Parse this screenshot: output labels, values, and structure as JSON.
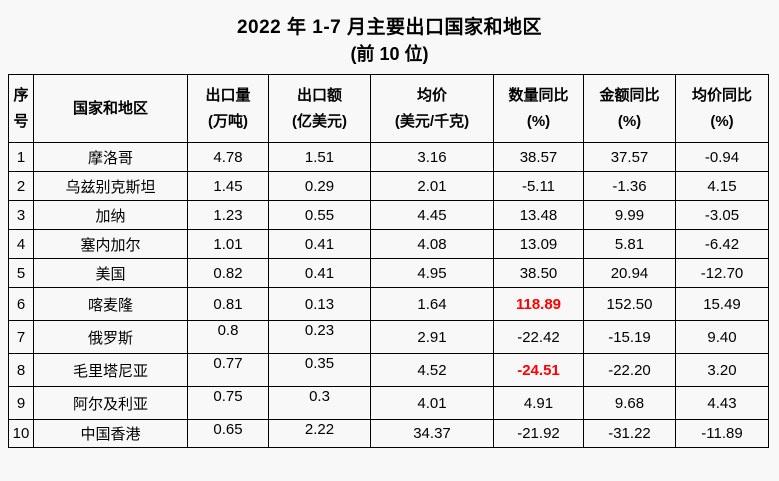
{
  "title": {
    "line1": "2022 年 1-7 月主要出口国家和地区",
    "line2": "(前 10 位)"
  },
  "table": {
    "headers": [
      {
        "line1": "序",
        "line2": "号"
      },
      {
        "line1": "国家和地区",
        "line2": ""
      },
      {
        "line1": "出口量",
        "line2": "(万吨)"
      },
      {
        "line1": "出口额",
        "line2": "(亿美元)"
      },
      {
        "line1": "均价",
        "line2": "(美元/千克)"
      },
      {
        "line1": "数量同比",
        "line2": "(%)"
      },
      {
        "line1": "金额同比",
        "line2": "(%)"
      },
      {
        "line1": "均价同比",
        "line2": "(%)"
      }
    ],
    "rows": [
      {
        "no": "1",
        "country": "摩洛哥",
        "export_qty": "4.78",
        "export_value": "1.51",
        "avg_price": "3.16",
        "qty_yoy": "38.57",
        "value_yoy": "37.57",
        "price_yoy": "-0.94"
      },
      {
        "no": "2",
        "country": "乌兹别克斯坦",
        "export_qty": "1.45",
        "export_value": "0.29",
        "avg_price": "2.01",
        "qty_yoy": "-5.11",
        "value_yoy": "-1.36",
        "price_yoy": "4.15"
      },
      {
        "no": "3",
        "country": "加纳",
        "export_qty": "1.23",
        "export_value": "0.55",
        "avg_price": "4.45",
        "qty_yoy": "13.48",
        "value_yoy": "9.99",
        "price_yoy": "-3.05"
      },
      {
        "no": "4",
        "country": "塞内加尔",
        "export_qty": "1.01",
        "export_value": "0.41",
        "avg_price": "4.08",
        "qty_yoy": "13.09",
        "value_yoy": "5.81",
        "price_yoy": "-6.42"
      },
      {
        "no": "5",
        "country": "美国",
        "export_qty": "0.82",
        "export_value": "0.41",
        "avg_price": "4.95",
        "qty_yoy": "38.50",
        "value_yoy": "20.94",
        "price_yoy": "-12.70"
      },
      {
        "no": "6",
        "country": "喀麦隆",
        "export_qty": "0.81",
        "export_value": "0.13",
        "avg_price": "1.64",
        "qty_yoy": "118.89",
        "value_yoy": "152.50",
        "price_yoy": "15.49"
      },
      {
        "no": "7",
        "country": "俄罗斯",
        "export_qty": "0.8",
        "export_value": "0.23",
        "avg_price": "2.91",
        "qty_yoy": "-22.42",
        "value_yoy": "-15.19",
        "price_yoy": "9.40"
      },
      {
        "no": "8",
        "country": "毛里塔尼亚",
        "export_qty": "0.77",
        "export_value": "0.35",
        "avg_price": "4.52",
        "qty_yoy": "-24.51",
        "value_yoy": "-22.20",
        "price_yoy": "3.20"
      },
      {
        "no": "9",
        "country": "阿尔及利亚",
        "export_qty": "0.75",
        "export_value": "0.3",
        "avg_price": "4.01",
        "qty_yoy": "4.91",
        "value_yoy": "9.68",
        "price_yoy": "4.43"
      },
      {
        "no": "10",
        "country": "中国香港",
        "export_qty": "0.65",
        "export_value": "2.22",
        "avg_price": "34.37",
        "qty_yoy": "-21.92",
        "value_yoy": "-31.22",
        "price_yoy": "-11.89"
      }
    ],
    "highlights": [
      {
        "row": 6,
        "col": "qty_yoy"
      },
      {
        "row": 8,
        "col": "qty_yoy"
      }
    ],
    "highlight_color": "#ff0000",
    "text_color": "#000000"
  }
}
